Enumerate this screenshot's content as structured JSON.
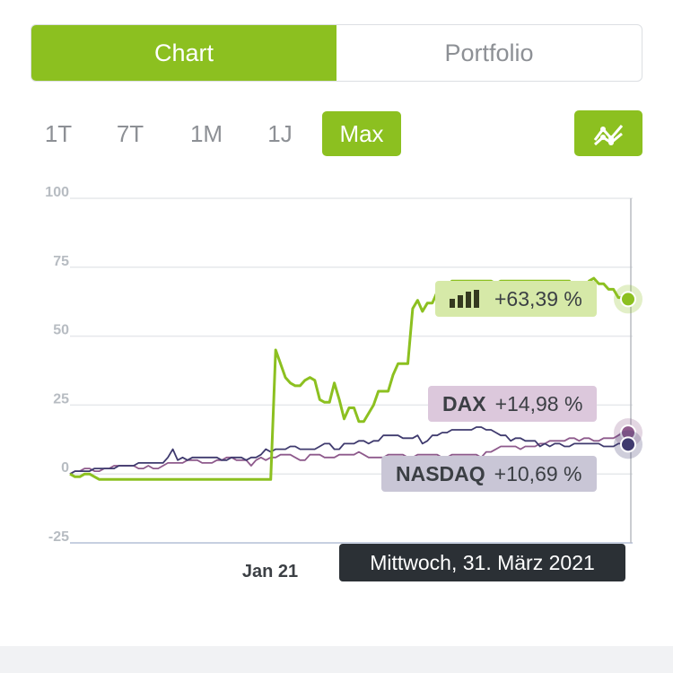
{
  "tabs": [
    {
      "label": "Chart",
      "active": true
    },
    {
      "label": "Portfolio",
      "active": false
    }
  ],
  "ranges": [
    {
      "label": "1T",
      "active": false
    },
    {
      "label": "7T",
      "active": false
    },
    {
      "label": "1M",
      "active": false
    },
    {
      "label": "1J",
      "active": false
    },
    {
      "label": "Max",
      "active": true
    }
  ],
  "chart_toggle_icon": "line-chart-icon",
  "colors": {
    "accent": "#8cc020",
    "portfolio_line": "#8cc020",
    "dax_line": "#8e5a8c",
    "nasdaq_line": "#3f3a6e",
    "dax_badge": "#dcc8dc",
    "nasdaq_badge": "#c9c6d6",
    "portfolio_badge": "#d6e9a8"
  },
  "legend": {
    "portfolio": {
      "icon": "bar-chart-icon",
      "value": "+63,39 %"
    },
    "dax": {
      "name": "DAX",
      "value": "+14,98 %"
    },
    "nasdaq": {
      "name": "NASDAQ",
      "value": "+10,69 %"
    }
  },
  "tooltip": "Mittwoch, 31. März 2021",
  "chart_data": {
    "type": "line",
    "yticks": [
      "100",
      "75",
      "50",
      "25",
      "0",
      "-25"
    ],
    "xticks": [
      "Jan 21"
    ],
    "ylim": [
      -25,
      100
    ],
    "grid": true,
    "series": [
      {
        "name": "Portfolio",
        "values": [
          0,
          -1,
          -1,
          0,
          0,
          -1,
          -2,
          -2,
          -2,
          -2,
          -2,
          -2,
          -2,
          -2,
          -2,
          -2,
          -2,
          -2,
          -2,
          -2,
          -2,
          -2,
          -2,
          -2,
          -2,
          -2,
          -2,
          -2,
          -2,
          -2,
          -2,
          -2,
          -2,
          -2,
          -2,
          -2,
          -2,
          -2,
          -2,
          -2,
          -2,
          -2,
          45,
          40,
          35,
          33,
          32,
          32,
          34,
          35,
          34,
          27,
          26,
          26,
          33,
          27,
          20,
          24,
          24,
          19,
          19,
          22,
          25,
          30,
          30,
          30,
          36,
          40,
          40,
          40,
          60,
          63,
          59,
          62,
          62,
          66,
          66,
          68,
          70,
          70,
          70,
          70,
          70,
          70,
          70,
          70,
          70,
          69,
          70,
          70,
          70,
          70,
          70,
          70,
          70,
          70,
          70,
          70,
          70,
          70,
          70,
          70,
          70,
          68,
          67,
          67,
          70,
          71,
          69,
          69,
          67,
          67,
          64,
          64,
          63.4
        ]
      },
      {
        "name": "DAX",
        "values": [
          0,
          1,
          1,
          2,
          2,
          1,
          1,
          2,
          2,
          3,
          3,
          3,
          3,
          3,
          2,
          2,
          3,
          2,
          2,
          3,
          4,
          4,
          4,
          4,
          5,
          5,
          5,
          4,
          4,
          4,
          5,
          5,
          6,
          6,
          5,
          5,
          5,
          3,
          5,
          6,
          5,
          6,
          6,
          7,
          7,
          7,
          6,
          5,
          5,
          7,
          7,
          7,
          6,
          6,
          6,
          7,
          7,
          7,
          7,
          8,
          7,
          6,
          6,
          6,
          6,
          7,
          7,
          7,
          7,
          6,
          6,
          7,
          7,
          7,
          7,
          7,
          6,
          6,
          7,
          7,
          7,
          7,
          7,
          7,
          6,
          8,
          8,
          9,
          10,
          10,
          10,
          10,
          9,
          10,
          10,
          10,
          11,
          11,
          12,
          12,
          12,
          12,
          13,
          13,
          12,
          13,
          13,
          12,
          12,
          13,
          13,
          13,
          14,
          15,
          15
        ]
      },
      {
        "name": "NASDAQ",
        "values": [
          0,
          1,
          1,
          1,
          1,
          2,
          2,
          2,
          2,
          2,
          3,
          3,
          3,
          3,
          4,
          4,
          4,
          4,
          4,
          4,
          6,
          9,
          5,
          6,
          5,
          6,
          6,
          6,
          6,
          6,
          6,
          5,
          5,
          6,
          6,
          6,
          5,
          6,
          6,
          7,
          9,
          8,
          9,
          9,
          9,
          10,
          10,
          9,
          9,
          9,
          9,
          10,
          11,
          11,
          9,
          9,
          11,
          11,
          11,
          12,
          12,
          11,
          12,
          12,
          14,
          14,
          14,
          14,
          13,
          13,
          13,
          14,
          11,
          12,
          14,
          14,
          15,
          15,
          16,
          16,
          16,
          16,
          16,
          17,
          17,
          16,
          16,
          15,
          14,
          14,
          12,
          13,
          13,
          12,
          12,
          12,
          10,
          11,
          10,
          11,
          11,
          10,
          10,
          11,
          11,
          11,
          11,
          11,
          11,
          10,
          10,
          10,
          11,
          11,
          10.7
        ]
      }
    ]
  }
}
